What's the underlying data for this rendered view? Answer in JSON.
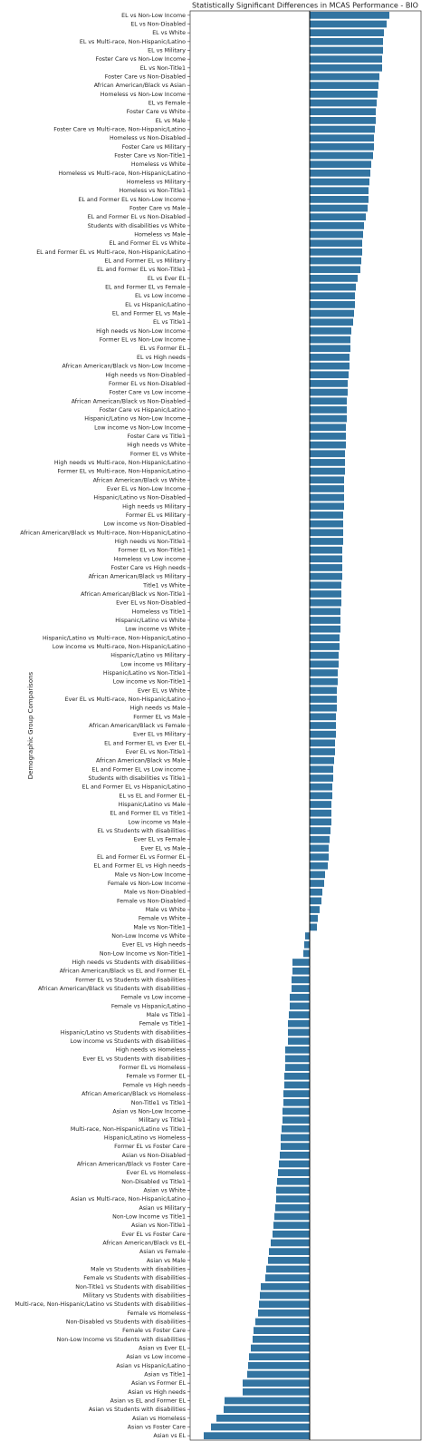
{
  "chart_data": {
    "type": "barh",
    "title": "Statistically Significant Differences in MCAS Performance - BIO",
    "ylabel": "Demographic Group Comparisons",
    "color": "#3274a1",
    "xlim": [
      -33,
      30.75
    ],
    "categories": [
      "EL vs Non-Low Income",
      "EL vs Non-Disabled",
      "EL vs White",
      "EL vs Multi-race, Non-Hispanic/Latino",
      "EL vs Military",
      "Foster Care vs Non-Low Income",
      "EL vs Non-Title1",
      "Foster Care vs Non-Disabled",
      "African American/Black vs Asian",
      "Homeless vs Non-Low Income",
      "EL vs Female",
      "Foster Care vs White",
      "EL vs Male",
      "Foster Care vs Multi-race, Non-Hispanic/Latino",
      "Homeless vs Non-Disabled",
      "Foster Care vs Military",
      "Foster Care vs Non-Title1",
      "Homeless vs White",
      "Homeless vs Multi-race, Non-Hispanic/Latino",
      "Homeless vs Military",
      "Homeless vs Non-Title1",
      "EL and Former EL vs Non-Low Income",
      "Foster Care vs Male",
      "EL and Former EL vs Non-Disabled",
      "Students with disabilities vs White",
      "Homeless vs Male",
      "EL and Former EL vs White",
      "EL and Former EL vs Multi-race, Non-Hispanic/Latino",
      "EL and Former EL vs Military",
      "EL and Former EL vs Non-Title1",
      "EL vs Ever EL",
      "EL and Former EL vs Female",
      "EL vs Low income",
      "EL vs Hispanic/Latino",
      "EL and Former EL vs Male",
      "EL vs Title1",
      "High needs vs Non-Low Income",
      "Former EL vs Non-Low Income",
      "EL vs Former EL",
      "EL vs High needs",
      "African American/Black vs Non-Low Income",
      "High needs vs Non-Disabled",
      "Former EL vs Non-Disabled",
      "Foster Care vs Low income",
      "African American/Black vs Non-Disabled",
      "Foster Care vs Hispanic/Latino",
      "Hispanic/Latino vs Non-Low Income",
      "Low income vs Non-Low Income",
      "Foster Care vs Title1",
      "High needs vs White",
      "Former EL vs White",
      "High needs vs Multi-race, Non-Hispanic/Latino",
      "Former EL vs Multi-race, Non-Hispanic/Latino",
      "African American/Black vs White",
      "Ever EL vs Non-Low Income",
      "Hispanic/Latino vs Non-Disabled",
      "High needs vs Military",
      "Former EL vs Military",
      "Low income vs Non-Disabled",
      "African American/Black vs Multi-race, Non-Hispanic/Latino",
      "High needs vs Non-Title1",
      "Former EL vs Non-Title1",
      "Homeless vs Low income",
      "Foster Care vs High needs",
      "African American/Black vs Military",
      "Title1 vs White",
      "African American/Black vs Non-Title1",
      "Ever EL vs Non-Disabled",
      "Homeless vs Title1",
      "Hispanic/Latino vs White",
      "Low income vs White",
      "Hispanic/Latino vs Multi-race, Non-Hispanic/Latino",
      "Low income vs Multi-race, Non-Hispanic/Latino",
      "Hispanic/Latino vs Military",
      "Low income vs Military",
      "Hispanic/Latino vs Non-Title1",
      "Low income vs Non-Title1",
      "Ever EL vs White",
      "Ever EL vs Multi-race, Non-Hispanic/Latino",
      "High needs vs Male",
      "Former EL vs Male",
      "African American/Black vs Female",
      "Ever EL vs Military",
      "EL and Former EL vs Ever EL",
      "Ever EL vs Non-Title1",
      "African American/Black vs Male",
      "EL and Former EL vs Low income",
      "Students with disabilities vs Title1",
      "EL and Former EL vs Hispanic/Latino",
      "EL vs EL and Former EL",
      "Hispanic/Latino vs Male",
      "EL and Former EL vs Title1",
      "Low income vs Male",
      "EL vs Students with disabilities",
      "Ever EL vs Female",
      "Ever EL vs Male",
      "EL and Former EL vs Former EL",
      "EL and Former EL vs High needs",
      "Male vs Non-Low Income",
      "Female vs Non-Low Income",
      "Male vs Non-Disabled",
      "Female vs Non-Disabled",
      "Male vs White",
      "Female vs White",
      "Male vs Non-Title1",
      "Non-Low Income vs White",
      "Ever EL vs High needs",
      "Non-Low Income vs Non-Title1",
      "High needs vs Students with disabilities",
      "African American/Black vs EL and Former EL",
      "Former EL vs Students with disabilities",
      "African American/Black vs Students with disabilities",
      "Female vs Low income",
      "Female vs Hispanic/Latino",
      "Male vs Title1",
      "Female vs Title1",
      "Hispanic/Latino vs Students with disabilities",
      "Low income vs Students with disabilities",
      "High needs vs Homeless",
      "Ever EL vs Students with disabilities",
      "Former EL vs Homeless",
      "Female vs Former EL",
      "Female vs High needs",
      "African American/Black vs Homeless",
      "Non-Title1 vs Title1",
      "Asian vs Non-Low Income",
      "Military vs Title1",
      "Multi-race, Non-Hispanic/Latino vs Title1",
      "Hispanic/Latino vs Homeless",
      "Former EL vs Foster Care",
      "Asian vs Non-Disabled",
      "African American/Black vs Foster Care",
      "Ever EL vs Homeless",
      "Non-Disabled vs Title1",
      "Asian vs White",
      "Asian vs Multi-race, Non-Hispanic/Latino",
      "Asian vs Military",
      "Non-Low Income vs Title1",
      "Asian vs Non-Title1",
      "Ever EL vs Foster Care",
      "African American/Black vs EL",
      "Asian vs Female",
      "Asian vs Male",
      "Male vs Students with disabilities",
      "Female vs Students with disabilities",
      "Non-Title1 vs Students with disabilities",
      "Military vs Students with disabilities",
      "Multi-race, Non-Hispanic/Latino vs Students with disabilities",
      "Female vs Homeless",
      "Non-Disabled vs Students with disabilities",
      "Female vs Foster Care",
      "Non-Low Income vs Students with disabilities",
      "Asian vs Ever EL",
      "Asian vs Low income",
      "Asian vs Hispanic/Latino",
      "Asian vs Title1",
      "Asian vs Former EL",
      "Asian vs High needs",
      "Asian vs EL and Former EL",
      "Asian vs Students with disabilities",
      "Asian vs Homeless",
      "Asian vs Foster Care",
      "Asian vs EL"
    ],
    "values": [
      22,
      21.25,
      20.5,
      20.25,
      20.25,
      20,
      20,
      19.25,
      19,
      18.75,
      18.5,
      18.25,
      18.25,
      18,
      17.75,
      17.75,
      17.5,
      17,
      16.75,
      16.5,
      16.25,
      16.25,
      16,
      15.5,
      15,
      14.75,
      14.5,
      14.5,
      14.25,
      14,
      13.25,
      12.75,
      12.5,
      12.5,
      12.25,
      12,
      11.5,
      11.25,
      11.25,
      11,
      11,
      10.75,
      10.5,
      10.5,
      10.25,
      10.25,
      10.25,
      10,
      10,
      10,
      9.75,
      9.75,
      9.75,
      9.5,
      9.5,
      9.5,
      9.5,
      9.25,
      9.25,
      9.25,
      9.25,
      9,
      9,
      9,
      9,
      8.75,
      8.75,
      8.75,
      8.5,
      8.5,
      8.5,
      8.25,
      8.25,
      8,
      8,
      7.75,
      7.75,
      7.5,
      7.5,
      7.5,
      7.25,
      7.25,
      7.25,
      7,
      7,
      6.75,
      6.5,
      6.5,
      6.25,
      6.25,
      6,
      6,
      6,
      5.75,
      5.5,
      5.25,
      5.25,
      5,
      4.25,
      4,
      3.5,
      3.25,
      2.75,
      2.25,
      2,
      -1.25,
      -1.5,
      -1.75,
      -4.75,
      -4.75,
      -5,
      -5,
      -5.5,
      -5.5,
      -5.75,
      -6,
      -6,
      -6,
      -6.75,
      -6.75,
      -6.75,
      -7,
      -7,
      -7.25,
      -7.25,
      -7.5,
      -7.5,
      -7.75,
      -8,
      -8,
      -8.25,
      -8.5,
      -8.75,
      -9,
      -9.25,
      -9.25,
      -9.5,
      -9.75,
      -10,
      -10.25,
      -10.75,
      -11.25,
      -11.5,
      -12,
      -12.25,
      -13.5,
      -13.75,
      -14,
      -14.25,
      -15,
      -15.5,
      -15.75,
      -16.25,
      -16.75,
      -17,
      -17.25,
      -18.5,
      -18.5,
      -23.5,
      -23.75,
      -25.75,
      -27.25,
      -29.25
    ]
  }
}
